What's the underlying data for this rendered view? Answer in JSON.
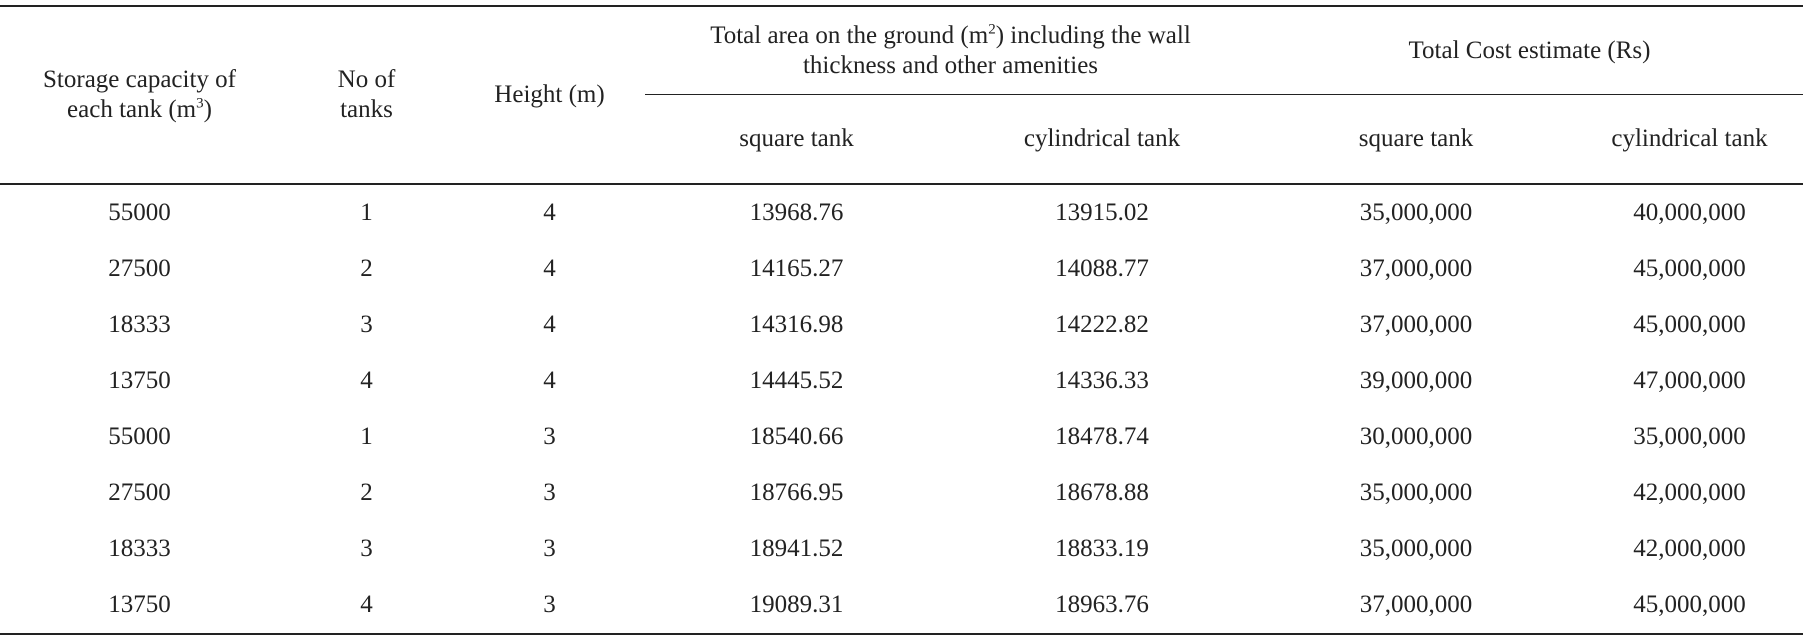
{
  "table": {
    "header": {
      "capacity": [
        "Storage capacity of each tank (m",
        "3",
        ")"
      ],
      "tanks": "No of tanks",
      "height": "Height (m)",
      "area": [
        "Total area on the ground (m",
        "2",
        ") including the wall thickness and other amenities"
      ],
      "cost": "Total Cost estimate (Rs)",
      "area_square": "square tank",
      "area_cylindrical": "cylindrical tank",
      "cost_square": "square tank",
      "cost_cylindrical": "cylindrical tank"
    },
    "rows": [
      [
        "55000",
        "1",
        "4",
        "13968.76",
        "13915.02",
        "35,000,000",
        "40,000,000"
      ],
      [
        "27500",
        "2",
        "4",
        "14165.27",
        "14088.77",
        "37,000,000",
        "45,000,000"
      ],
      [
        "18333",
        "3",
        "4",
        "14316.98",
        "14222.82",
        "37,000,000",
        "45,000,000"
      ],
      [
        "13750",
        "4",
        "4",
        "14445.52",
        "14336.33",
        "39,000,000",
        "47,000,000"
      ],
      [
        "55000",
        "1",
        "3",
        "18540.66",
        "18478.74",
        "30,000,000",
        "35,000,000"
      ],
      [
        "27500",
        "2",
        "3",
        "18766.95",
        "18678.88",
        "35,000,000",
        "42,000,000"
      ],
      [
        "18333",
        "3",
        "3",
        "18941.52",
        "18833.19",
        "35,000,000",
        "42,000,000"
      ],
      [
        "13750",
        "4",
        "3",
        "19089.31",
        "18963.76",
        "37,000,000",
        "45,000,000"
      ]
    ]
  }
}
